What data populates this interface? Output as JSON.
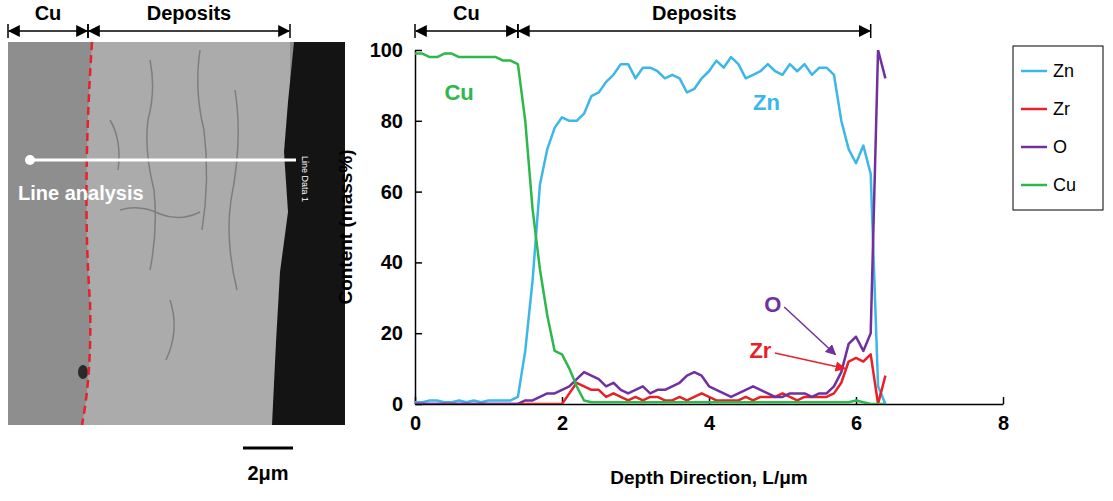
{
  "image_panel": {
    "regions": [
      "Cu",
      "Deposits"
    ],
    "line_label": "Line analysis",
    "data_label": "Line Data 1",
    "scale_bar": "2μm"
  },
  "chart_data": {
    "type": "line",
    "x_label": "Depth Direction, L/μm",
    "y_label": "Content (mass%)",
    "xlim": [
      0,
      8
    ],
    "xticks": [
      0,
      2,
      4,
      6,
      8
    ],
    "ylim": [
      0,
      100
    ],
    "yticks": [
      0,
      20,
      40,
      60,
      80,
      100
    ],
    "legend": "right",
    "regions": [
      {
        "label": "Cu",
        "from": 0,
        "to": 1.4
      },
      {
        "label": "Deposits",
        "from": 1.4,
        "to": 6.2
      }
    ],
    "annotations": [
      {
        "text": "Cu",
        "x": 0.4,
        "y": 86,
        "color": "#2db84b"
      },
      {
        "text": "Zn",
        "x": 4.6,
        "y": 83,
        "color": "#3db6e8"
      },
      {
        "text": "O",
        "x": 4.75,
        "y": 26,
        "color": "#7030a0",
        "arrow_x": 5.72,
        "arrow_y": 14
      },
      {
        "text": "Zr",
        "x": 4.55,
        "y": 13,
        "color": "#e8202a",
        "arrow_x": 5.85,
        "arrow_y": 10
      }
    ],
    "x": [
      0,
      0.1,
      0.2,
      0.3,
      0.4,
      0.5,
      0.6,
      0.7,
      0.8,
      0.9,
      1,
      1.1,
      1.2,
      1.3,
      1.4,
      1.5,
      1.6,
      1.7,
      1.8,
      1.9,
      2,
      2.1,
      2.2,
      2.3,
      2.4,
      2.5,
      2.6,
      2.7,
      2.8,
      2.9,
      3,
      3.1,
      3.2,
      3.3,
      3.4,
      3.5,
      3.6,
      3.7,
      3.8,
      3.9,
      4,
      4.1,
      4.2,
      4.3,
      4.4,
      4.5,
      4.6,
      4.7,
      4.8,
      4.9,
      5,
      5.1,
      5.2,
      5.3,
      5.4,
      5.5,
      5.6,
      5.7,
      5.8,
      5.9,
      6,
      6.1,
      6.2,
      6.3,
      6.4
    ],
    "series": [
      {
        "name": "Zn",
        "color": "#3db6e8",
        "values": [
          0.5,
          0.5,
          1,
          1,
          0.5,
          0.5,
          1,
          0.5,
          1,
          0.5,
          1,
          1,
          1,
          1,
          2,
          15,
          35,
          62,
          72,
          78,
          81,
          80,
          80,
          82,
          87,
          88,
          91,
          93,
          96,
          96,
          92,
          95,
          95,
          94,
          92,
          93,
          92,
          88,
          89,
          92,
          94,
          97,
          95,
          98,
          96,
          92,
          93,
          94,
          96,
          94,
          93,
          96,
          94,
          96,
          93,
          95,
          95,
          93,
          80,
          72,
          68,
          73,
          65,
          5,
          0
        ]
      },
      {
        "name": "Zr",
        "color": "#e8202a",
        "values": [
          0,
          0,
          0,
          0,
          0,
          0,
          0,
          0,
          0,
          0,
          0,
          0,
          0,
          0,
          0,
          0,
          0,
          0,
          0,
          0,
          0,
          3,
          6,
          5,
          4,
          4,
          2,
          3,
          2,
          1,
          2,
          1,
          2,
          2,
          1,
          1,
          2,
          1,
          2,
          3,
          2,
          1,
          1,
          1,
          1,
          2,
          1,
          2,
          2,
          2,
          3,
          2,
          1,
          2,
          2,
          2,
          2,
          3,
          6,
          12,
          13,
          12,
          14,
          0,
          8
        ]
      },
      {
        "name": "O",
        "color": "#7030a0",
        "values": [
          0,
          0,
          0,
          0,
          0,
          0,
          0,
          0,
          0,
          0,
          0,
          0,
          0,
          0,
          0,
          1,
          1,
          2,
          3,
          3,
          4,
          5,
          7,
          9,
          8,
          7,
          5,
          6,
          4,
          3,
          4,
          5,
          3,
          4,
          4,
          5,
          6,
          8,
          9,
          8,
          5,
          4,
          3,
          2,
          3,
          4,
          5,
          4,
          3,
          2,
          2,
          3,
          3,
          3,
          2,
          3,
          3,
          5,
          9,
          17,
          19,
          15,
          20,
          100,
          92
        ]
      },
      {
        "name": "Cu",
        "color": "#2db84b",
        "values": [
          99,
          99,
          98,
          98,
          99,
          99,
          98,
          98,
          98,
          98,
          98,
          98,
          97,
          97,
          96,
          80,
          55,
          38,
          25,
          15,
          14,
          10,
          5,
          1,
          0.5,
          0.5,
          0.5,
          0.5,
          0.5,
          0.5,
          0.5,
          0.5,
          0.5,
          0.5,
          0.5,
          0.5,
          0.5,
          0.5,
          0.5,
          0.5,
          0.5,
          0.5,
          0.5,
          0.5,
          0.5,
          0.5,
          0.5,
          0.5,
          0.5,
          0.5,
          0.5,
          0.5,
          0.5,
          0.5,
          0.5,
          0.5,
          0.5,
          0.5,
          0.5,
          0.5,
          1,
          0.5,
          0,
          0,
          0
        ]
      }
    ]
  }
}
